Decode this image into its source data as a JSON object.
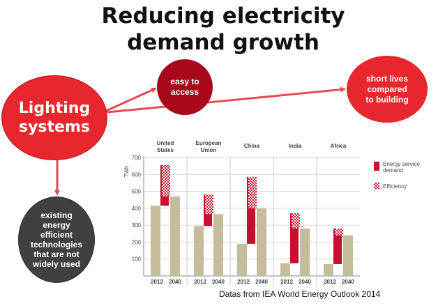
{
  "slide": {
    "title": "Reducing electricity\ndemand growth",
    "source_note": "Datas from IEA World Energy Outlook 2014"
  },
  "bubbles": {
    "lighting": "Lighting\nsystems",
    "easy": "easy to\naccess",
    "short_lives": "short lives\ncompared\nto building",
    "existing": "existing\nenergy\nefficient\ntechnologies\nthat are not\nwidely used"
  },
  "colors": {
    "bubble_red": "#e8262d",
    "bubble_dark_red": "#a8091a",
    "bubble_grey": "#404040",
    "arrow": "#e8494f",
    "bar_base": "#c5bc9b",
    "demand": "#c8102e",
    "efficiency": "#c8102e"
  },
  "chart_data": {
    "type": "bar",
    "title": "",
    "xlabel": "",
    "ylabel": "TWh",
    "ylim": [
      0,
      700
    ],
    "yticks": [
      100,
      200,
      300,
      400,
      500,
      600,
      700
    ],
    "grid": true,
    "legend_position": "right",
    "legend": [
      "Energy service demand",
      "Efficiency"
    ],
    "regions": [
      {
        "name": "United States",
        "years": [
          "2012",
          "2040"
        ],
        "base_2012": 415,
        "demand_top": 655,
        "base_2040": 470
      },
      {
        "name": "European Union",
        "years": [
          "2012",
          "2040"
        ],
        "base_2012": 295,
        "demand_top": 480,
        "base_2040": 365
      },
      {
        "name": "China",
        "years": [
          "2012",
          "2040"
        ],
        "base_2012": 190,
        "demand_top": 585,
        "base_2040": 400
      },
      {
        "name": "India",
        "years": [
          "2012",
          "2040"
        ],
        "base_2012": 75,
        "demand_top": 370,
        "base_2040": 280
      },
      {
        "name": "Africa",
        "years": [
          "2012",
          "2040"
        ],
        "base_2012": 70,
        "demand_top": 280,
        "base_2040": 240
      }
    ]
  }
}
